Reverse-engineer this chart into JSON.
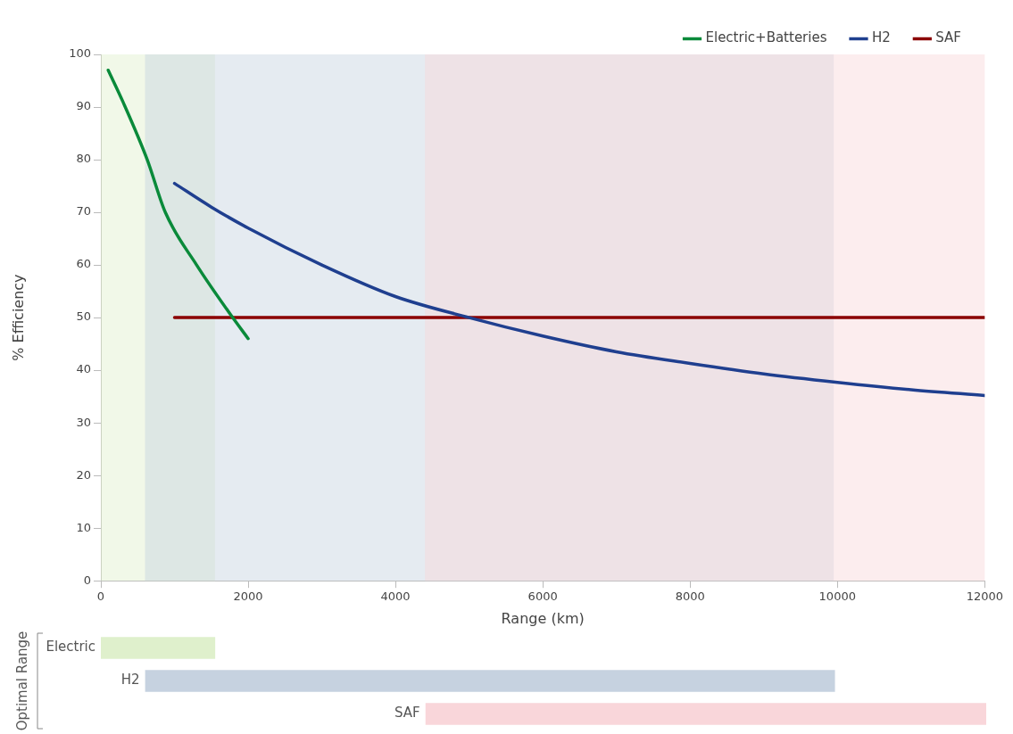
{
  "chart_data": [
    {
      "type": "line",
      "xlabel": "Range (km)",
      "ylabel": "% Efficiency",
      "xlim": [
        0,
        12000
      ],
      "xticks": [
        0,
        2000,
        4000,
        6000,
        8000,
        10000,
        12000
      ],
      "ylim": [
        0,
        100
      ],
      "yticks": [
        0,
        10,
        20,
        30,
        40,
        50,
        60,
        70,
        80,
        90,
        100
      ],
      "grid": false,
      "legend": "top right",
      "marker": "none",
      "line_style": "solid",
      "series": [
        {
          "name": "Electric+Batteries",
          "color": "#0a8a3a",
          "x": [
            100,
            300,
            630,
            875,
            1300,
            1790,
            2000
          ],
          "values": [
            97,
            91,
            80,
            70,
            60,
            50,
            46
          ]
        },
        {
          "name": "H2",
          "color": "#1f3f8f",
          "x": [
            1000,
            1500,
            2000,
            3000,
            4000,
            5000,
            6000,
            7000,
            8000,
            9000,
            10000,
            11000,
            12000
          ],
          "values": [
            75.5,
            71,
            67,
            60,
            54,
            50,
            46.5,
            43.5,
            41.3,
            39.3,
            37.7,
            36.3,
            35.2
          ]
        },
        {
          "name": "SAF",
          "color": "#8b0000",
          "x": [
            1000,
            12000
          ],
          "values": [
            50,
            50
          ]
        }
      ],
      "bands": [
        {
          "axis": "x",
          "from": 0,
          "to": 1550,
          "color": "#dff0cc"
        },
        {
          "axis": "x",
          "from": 600,
          "to": 9950,
          "color": "#c6d2e0"
        },
        {
          "axis": "x",
          "from": 4400,
          "to": 12000,
          "color": "#f9d6da"
        }
      ]
    },
    {
      "type": "bar",
      "orientation": "horizontal",
      "ylabel": "Optimal Range",
      "categories": [
        "Electric",
        "H2",
        "SAF"
      ],
      "base": [
        0,
        600,
        4400
      ],
      "values": [
        1550,
        9350,
        7600
      ],
      "colors": [
        "#dff0cc",
        "#c6d2e0",
        "#f9d6da"
      ],
      "xlim": [
        0,
        12000
      ],
      "xticks": [
        0,
        2000,
        4000,
        6000,
        8000,
        10000,
        12000
      ],
      "tick_labels": "y",
      "grid": false
    }
  ]
}
